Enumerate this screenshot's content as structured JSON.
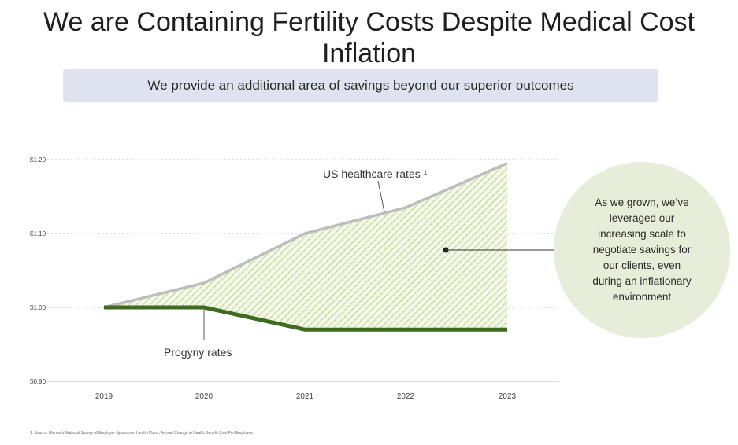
{
  "header": {
    "title": "We are Containing Fertility Costs Despite Medical Cost Inflation",
    "subtitle": "We provide an additional area of savings beyond our superior outcomes"
  },
  "chart_data": {
    "type": "line",
    "x": [
      "2019",
      "2020",
      "2021",
      "2022",
      "2023"
    ],
    "y_tick_labels": [
      "$1.20",
      "$1.10",
      "$1.00",
      "$0.90"
    ],
    "ylim": [
      0.9,
      1.2
    ],
    "grid": true,
    "series": [
      {
        "name": "US healthcare rates",
        "values": [
          1.0,
          1.033,
          1.1,
          1.135,
          1.195
        ],
        "color": "#bdbdbd"
      },
      {
        "name": "Progyny rates",
        "values": [
          1.0,
          1.0,
          0.97,
          0.97,
          0.97
        ],
        "color": "#3e6b1f"
      }
    ],
    "fill_between_color": "#c9dfa3",
    "annotations": {
      "us_label": "US healthcare rates ¹",
      "progyny_label": "Progyny rates"
    }
  },
  "callout": {
    "lines": [
      "As we grown, we’ve",
      "leveraged our",
      "increasing scale to",
      "negotiate savings for",
      "our clients, even",
      "during an inflationary",
      "environment"
    ],
    "bg_color": "#e6eed9"
  },
  "footnote": "1. Source: Mercer's National Survey of Employer-Sponsored Health Plans, Annual Change in Health Benefit Cost Per Employee"
}
